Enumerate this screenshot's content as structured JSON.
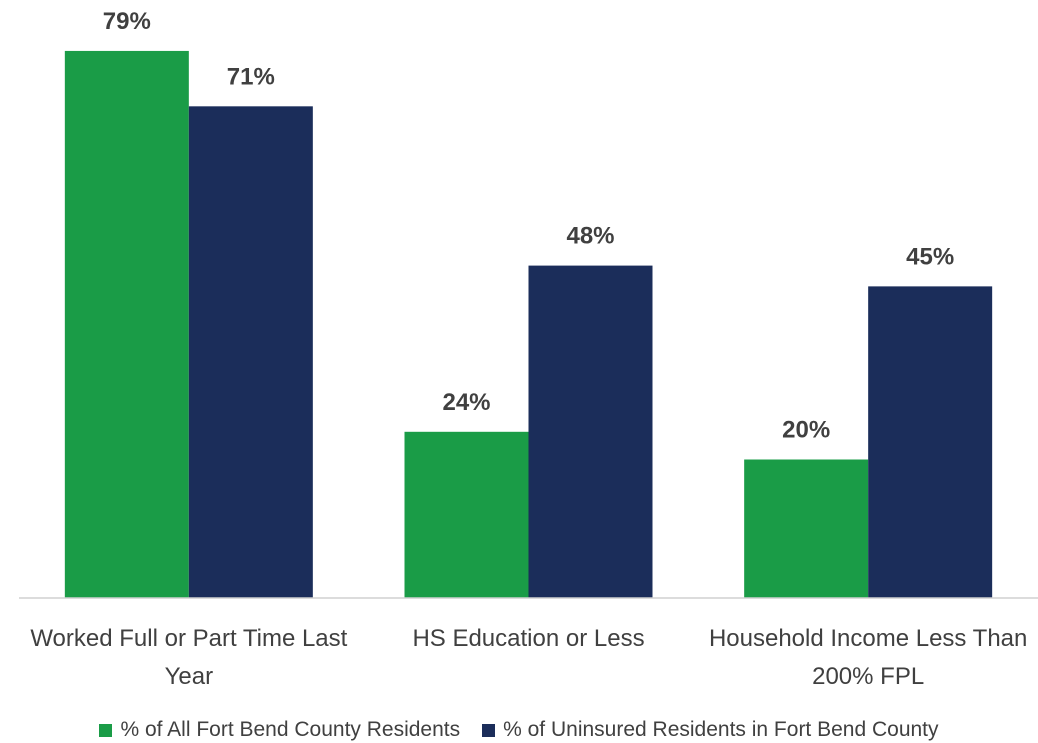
{
  "chart_data": {
    "type": "bar",
    "categories": [
      "Worked Full or Part Time Last Year",
      "HS Education or Less",
      "Household Income Less Than 200% FPL"
    ],
    "series": [
      {
        "name": "% of All Fort Bend County Residents",
        "color": "#1a9c47",
        "values": [
          79,
          24,
          20
        ],
        "value_labels": [
          "79%",
          "24%",
          "20%"
        ]
      },
      {
        "name": "% of Uninsured Residents in Fort Bend County",
        "color": "#1b2d5a",
        "values": [
          71,
          48,
          45
        ],
        "value_labels": [
          "71%",
          "48%",
          "45%"
        ]
      }
    ],
    "ylim": [
      0,
      80
    ],
    "legend": "bottom"
  }
}
